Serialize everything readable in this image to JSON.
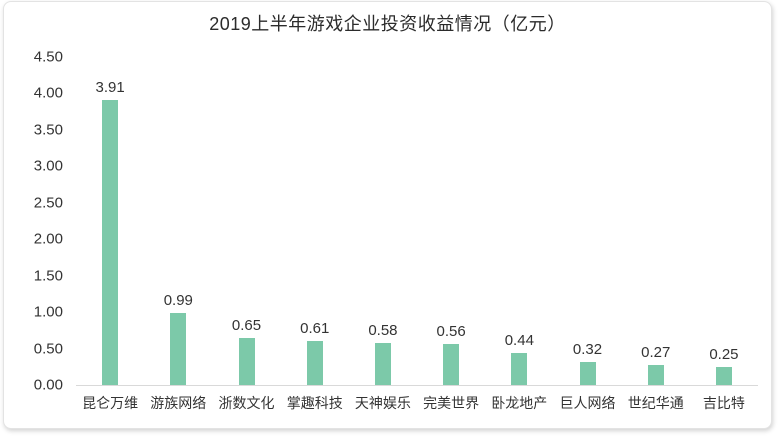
{
  "chart_data": {
    "type": "bar",
    "title": "2019上半年游戏企业投资收益情况（亿元）",
    "categories": [
      "昆仑万维",
      "游族网络",
      "浙数文化",
      "掌趣科技",
      "天神娱乐",
      "完美世界",
      "卧龙地产",
      "巨人网络",
      "世纪华通",
      "吉比特"
    ],
    "values": [
      3.91,
      0.99,
      0.65,
      0.61,
      0.58,
      0.56,
      0.44,
      0.32,
      0.27,
      0.25
    ],
    "value_labels": [
      "3.91",
      "0.99",
      "0.65",
      "0.61",
      "0.58",
      "0.56",
      "0.44",
      "0.32",
      "0.27",
      "0.25"
    ],
    "xlabel": "",
    "ylabel": "",
    "ylim": [
      0,
      4.5
    ],
    "ytick_step": 0.5,
    "yticks": [
      "0.00",
      "0.50",
      "1.00",
      "1.50",
      "2.00",
      "2.50",
      "3.00",
      "3.50",
      "4.00",
      "4.50"
    ],
    "grid": false,
    "legend_position": "none",
    "bar_color": "#7cc9a9",
    "axis_line_color": "#d9d9d9",
    "text_color": "#333333",
    "title_color": "#2b2b2b"
  }
}
